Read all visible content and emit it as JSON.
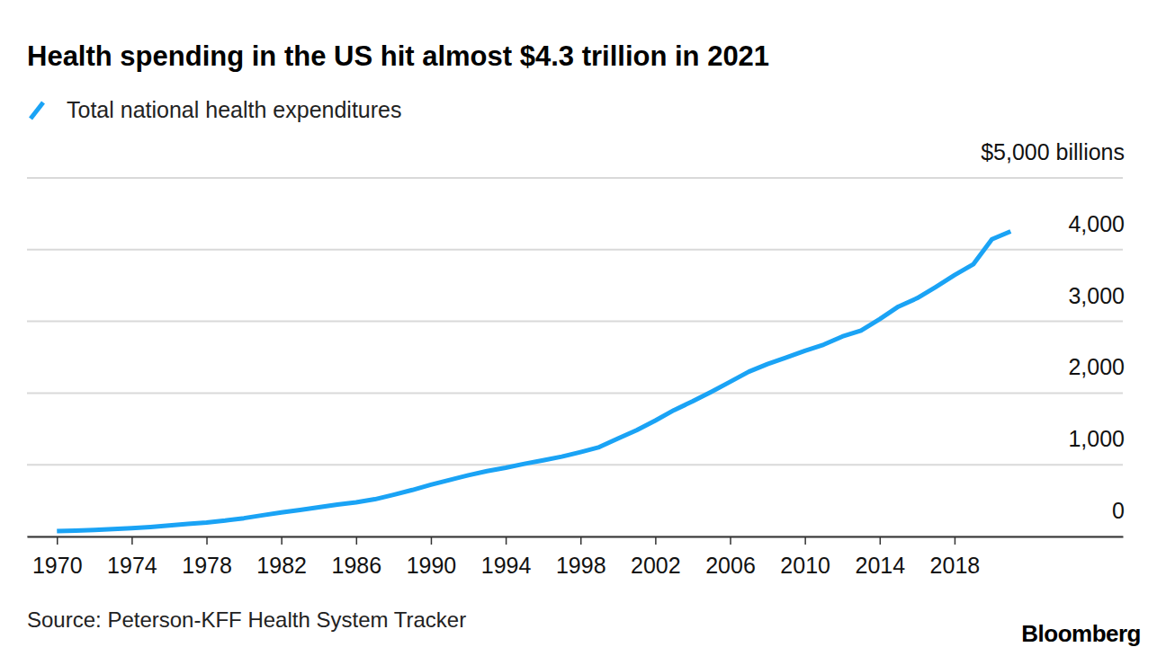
{
  "chart_data": {
    "type": "line",
    "title": "Health spending in the US hit almost $4.3 trillion in 2021",
    "source": "Source: Peterson-KFF Health System Tracker",
    "credit": "Bloomberg",
    "x": [
      1970,
      1971,
      1972,
      1973,
      1974,
      1975,
      1976,
      1977,
      1978,
      1979,
      1980,
      1981,
      1982,
      1983,
      1984,
      1985,
      1986,
      1987,
      1988,
      1989,
      1990,
      1991,
      1992,
      1993,
      1994,
      1995,
      1996,
      1997,
      1998,
      1999,
      2000,
      2001,
      2002,
      2003,
      2004,
      2005,
      2006,
      2007,
      2008,
      2009,
      2010,
      2011,
      2012,
      2013,
      2014,
      2015,
      2016,
      2017,
      2018,
      2019,
      2020,
      2021
    ],
    "series": [
      {
        "name": "Total national health expenditures",
        "color": "#1aa3f5",
        "values": [
          74,
          82,
          92,
          103,
          116,
          133,
          153,
          174,
          195,
          222,
          255,
          296,
          335,
          369,
          407,
          445,
          477,
          519,
          582,
          648,
          721,
          788,
          854,
          912,
          959,
          1013,
          1062,
          1114,
          1177,
          1246,
          1366,
          1483,
          1617,
          1762,
          1885,
          2018,
          2157,
          2298,
          2404,
          2496,
          2590,
          2675,
          2789,
          2871,
          3031,
          3206,
          3323,
          3480,
          3644,
          3795,
          4144,
          4255
        ]
      }
    ],
    "xlim": [
      1968.4,
      2027
    ],
    "xticks": [
      1970,
      1974,
      1978,
      1982,
      1986,
      1990,
      1994,
      1998,
      2002,
      2006,
      2010,
      2014,
      2018
    ],
    "ylim": [
      0,
      5000
    ],
    "yticks": [
      0,
      {
        "value": 1000,
        "label": "1,000"
      },
      {
        "value": 2000,
        "label": "2,000"
      },
      {
        "value": 3000,
        "label": "3,000"
      },
      {
        "value": 4000,
        "label": "4,000"
      },
      {
        "value": 5000,
        "label": "$5,000 billions"
      }
    ],
    "grid": true,
    "legend": "top-left"
  }
}
